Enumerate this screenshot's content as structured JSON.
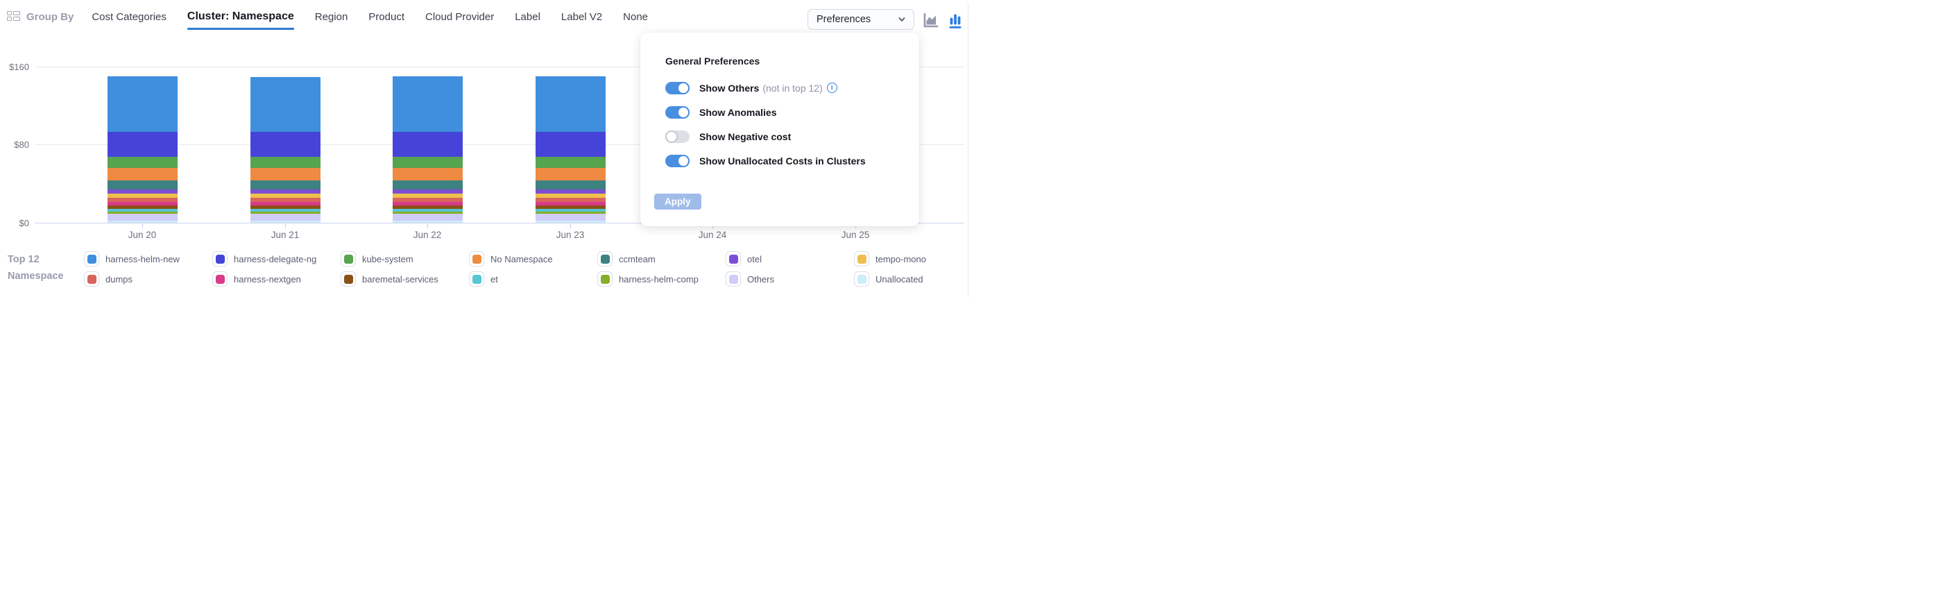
{
  "header": {
    "group_by_label": "Group By",
    "tabs": [
      {
        "label": "Cost Categories",
        "active": false
      },
      {
        "label": "Cluster: Namespace",
        "active": true
      },
      {
        "label": "Region",
        "active": false
      },
      {
        "label": "Product",
        "active": false
      },
      {
        "label": "Cloud Provider",
        "active": false
      },
      {
        "label": "Label",
        "active": false
      },
      {
        "label": "Label V2",
        "active": false
      },
      {
        "label": "None",
        "active": false
      }
    ],
    "preferences_button_label": "Preferences",
    "chart_type_icons": [
      {
        "name": "area-chart-icon",
        "active": false,
        "color": "#9598AD"
      },
      {
        "name": "bar-chart-icon",
        "active": true,
        "color": "#2E7CE0"
      }
    ]
  },
  "preferences_panel": {
    "title": "General Preferences",
    "toggles": [
      {
        "label": "Show Others",
        "suffix": "(not in top 12)",
        "has_info_icon": true,
        "on": true
      },
      {
        "label": "Show Anomalies",
        "suffix": "",
        "has_info_icon": false,
        "on": true
      },
      {
        "label": "Show Negative cost",
        "suffix": "",
        "has_info_icon": false,
        "on": false
      },
      {
        "label": "Show Unallocated Costs in Clusters",
        "suffix": "",
        "has_info_icon": false,
        "on": true
      }
    ],
    "apply_label": "Apply",
    "toggle_on_color": "#4A8FDF",
    "toggle_off_color": "#DCDFE6"
  },
  "legend": {
    "title_line1": "Top 12",
    "title_line2": "Namespace"
  },
  "chart_data": {
    "type": "bar",
    "stacked": true,
    "title": "",
    "xlabel": "",
    "ylabel": "",
    "grid": true,
    "ylim": [
      0,
      160
    ],
    "y_ticks": [
      "$0",
      "$80",
      "$160"
    ],
    "categories": [
      "Jun 20",
      "Jun 21",
      "Jun 22",
      "Jun 23",
      "Jun 24",
      "Jun 25"
    ],
    "note": "Bars for Jun 24 and Jun 25 are hidden behind the open Preferences panel (null values). Values in $.",
    "series": [
      {
        "name": "harness-helm-new",
        "color": "#3F8FDE",
        "values": [
          57,
          56.5,
          57.5,
          57,
          null,
          null
        ]
      },
      {
        "name": "harness-delegate-ng",
        "color": "#4644D8",
        "values": [
          25,
          25,
          25,
          25,
          null,
          null
        ]
      },
      {
        "name": "kube-system",
        "color": "#56A44E",
        "values": [
          12,
          12,
          12,
          12,
          null,
          null
        ]
      },
      {
        "name": "No Namespace",
        "color": "#EE8A42",
        "values": [
          12.5,
          12.5,
          12.5,
          12.5,
          null,
          null
        ]
      },
      {
        "name": "ccmteam",
        "color": "#3E8181",
        "values": [
          9.5,
          9.5,
          9.5,
          9.5,
          null,
          null
        ]
      },
      {
        "name": "otel",
        "color": "#7C4ED3",
        "values": [
          4.3,
          4.3,
          4.3,
          4.3,
          null,
          null
        ]
      },
      {
        "name": "tempo-mono",
        "color": "#EEC04B",
        "values": [
          4,
          4,
          4,
          4,
          null,
          null
        ]
      },
      {
        "name": "dumps",
        "color": "#D8655B",
        "values": [
          4,
          4,
          4,
          4,
          null,
          null
        ]
      },
      {
        "name": "harness-nextgen",
        "color": "#DA3A8C",
        "values": [
          4,
          4,
          4,
          4,
          null,
          null
        ]
      },
      {
        "name": "baremetal-services",
        "color": "#8A5116",
        "values": [
          3.5,
          3.5,
          3.5,
          3.5,
          null,
          null
        ]
      },
      {
        "name": "et",
        "color": "#55C6D4",
        "values": [
          2.8,
          2.8,
          2.8,
          2.8,
          null,
          null
        ]
      },
      {
        "name": "harness-helm-comp",
        "color": "#87AE29",
        "values": [
          2.2,
          2.2,
          2.2,
          2.2,
          null,
          null
        ]
      },
      {
        "name": "Others",
        "color": "#CECDF7",
        "values": [
          7,
          7,
          7,
          7,
          null,
          null
        ]
      },
      {
        "name": "Unallocated",
        "color": "#CDEDF7",
        "values": [
          2.2,
          2.2,
          2.2,
          2.2,
          null,
          null
        ]
      }
    ]
  }
}
